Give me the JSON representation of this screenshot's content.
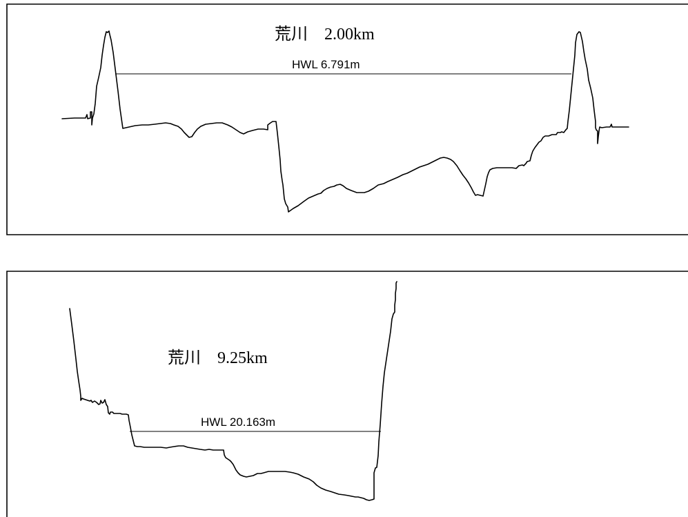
{
  "panels": [
    {
      "title": "荒川　2.00km",
      "hwl_label": "HWL 6.791m"
    },
    {
      "title": "荒川　9.25km",
      "hwl_label": "HWL 20.163m"
    }
  ]
}
